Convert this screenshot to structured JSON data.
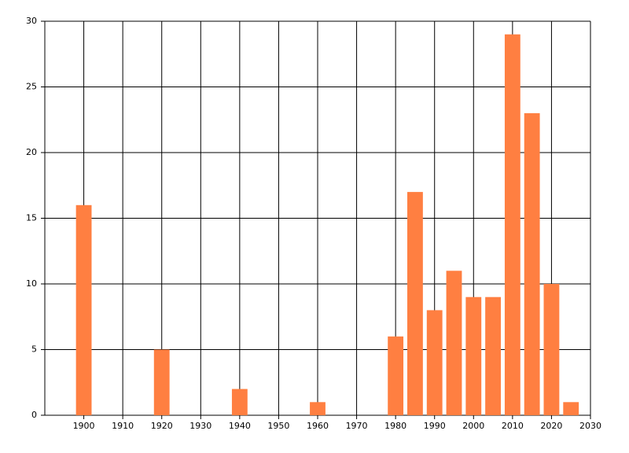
{
  "chart_data": {
    "type": "bar",
    "x": [
      1900,
      1920,
      1940,
      1960,
      1980,
      1985,
      1990,
      1995,
      2000,
      2005,
      2010,
      2015,
      2020,
      2025
    ],
    "values": [
      16,
      5,
      2,
      1,
      6,
      17,
      8,
      11,
      9,
      9,
      29,
      23,
      10,
      1
    ],
    "color": "#ff7f41",
    "xlim": [
      1890,
      2030
    ],
    "xticks": [
      1900,
      1910,
      1920,
      1930,
      1940,
      1950,
      1960,
      1970,
      1980,
      1990,
      2000,
      2010,
      2020,
      2030
    ],
    "ylim": [
      0,
      30
    ],
    "yticks": [
      0,
      5,
      10,
      15,
      20,
      25,
      30
    ],
    "grid": true
  }
}
